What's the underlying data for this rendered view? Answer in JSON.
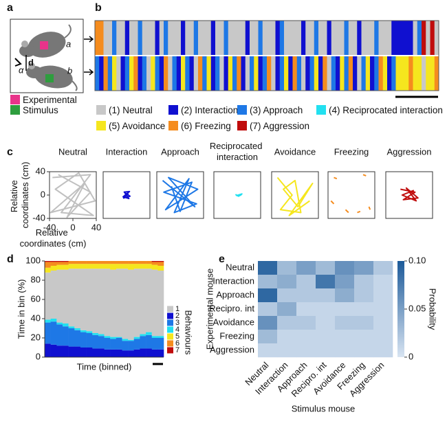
{
  "panel_letters": [
    "a",
    "b",
    "c",
    "d",
    "e"
  ],
  "panel_a": {
    "mouse_labels": [
      "a",
      "b"
    ],
    "distance": "d",
    "angle": "α",
    "legend": [
      {
        "name": "Experimental",
        "color": "#e8338a"
      },
      {
        "name": "Stimulus",
        "color": "#2e9e3e"
      }
    ]
  },
  "chart_data": [
    {
      "type": "ethogram",
      "colors": [
        "#c8c8c8",
        "#1010d0",
        "#1e78e6",
        "#22e0f0",
        "#f5e61e",
        "#f58c1e",
        "#c00c0c"
      ],
      "labels": [
        "(1) Neutral",
        "(2) Interaction",
        "(3) Approach",
        "(4) Reciprocated interaction",
        "(5) Avoidance",
        "(6) Freezing",
        "(7) Aggression"
      ],
      "rows": [
        [
          6,
          6,
          1,
          1,
          3,
          1,
          1,
          2,
          1,
          1,
          3,
          1,
          1,
          1,
          2,
          1,
          3,
          1,
          1,
          1,
          2,
          1,
          1,
          3,
          1,
          1,
          1,
          2,
          1,
          1,
          3,
          1,
          1,
          1,
          1,
          2,
          1,
          1,
          3,
          1,
          1,
          1,
          2,
          3,
          1,
          1,
          1,
          1,
          2,
          1,
          1,
          3,
          1,
          1,
          2,
          1,
          1,
          1,
          3,
          1,
          1,
          2,
          1,
          1,
          1,
          3,
          1,
          1,
          1,
          2,
          2,
          2,
          2,
          2,
          1,
          3,
          7,
          1,
          7,
          1
        ],
        [
          3,
          2,
          6,
          3,
          5,
          1,
          2,
          3,
          5,
          6,
          2,
          3,
          1,
          5,
          3,
          2,
          6,
          1,
          3,
          2,
          5,
          3,
          2,
          1,
          6,
          3,
          5,
          2,
          3,
          1,
          2,
          5,
          3,
          6,
          2,
          1,
          3,
          5,
          2,
          3,
          6,
          1,
          2,
          3,
          5,
          2,
          6,
          3,
          1,
          2,
          3,
          5,
          2,
          6,
          1,
          3,
          2,
          5,
          3,
          6,
          2,
          1,
          3,
          5,
          2,
          3,
          6,
          5,
          2,
          3,
          5,
          5,
          5,
          6,
          5,
          5,
          1,
          5,
          5,
          6
        ]
      ]
    },
    {
      "type": "line",
      "xlim": [
        -40,
        40
      ],
      "ylim": [
        -40,
        40
      ],
      "xticks": [
        -40,
        0,
        40
      ],
      "yticks": [
        -40,
        0,
        40
      ],
      "x_label": "Relative coordinates (cm)",
      "y_label": "Relative coordinates (cm)",
      "panels": [
        {
          "title": "Neutral",
          "color": "#c0c0c0",
          "x": [
            -35,
            30,
            -20,
            35,
            -30,
            10,
            38,
            -38,
            20,
            -10,
            30,
            -25
          ],
          "y": [
            30,
            35,
            -30,
            -35,
            10,
            38,
            -10,
            -30,
            20,
            -38,
            5,
            35
          ]
        },
        {
          "title": "Interaction",
          "color": "#1010d0",
          "x": [
            -5,
            5,
            -6,
            4,
            -3,
            6,
            -5,
            3
          ],
          "y": [
            5,
            6,
            -3,
            -6,
            4,
            -2,
            -5,
            3
          ]
        },
        {
          "title": "Approach",
          "color": "#1e78e6",
          "x": [
            -30,
            25,
            -20,
            30,
            -25,
            15,
            -10,
            28,
            -28,
            20,
            0,
            -15
          ],
          "y": [
            25,
            -20,
            30,
            10,
            -25,
            28,
            -30,
            -15,
            5,
            22,
            -28,
            15
          ]
        },
        {
          "title": "Reciprocated interaction",
          "color": "#22e0f0",
          "x": [
            -3,
            2,
            6,
            8,
            -2
          ],
          "y": [
            1,
            -2,
            0,
            2,
            -1
          ]
        },
        {
          "title": "Avoidance",
          "color": "#f5e61e",
          "x": [
            -30,
            -5,
            -25,
            10,
            0,
            -20,
            5,
            30,
            -10,
            25
          ],
          "y": [
            30,
            0,
            -25,
            -30,
            25,
            10,
            -20,
            20,
            -35,
            -10
          ]
        },
        {
          "title": "Freezing",
          "color": "#f58c1e",
          "x": [
            -30,
            -25,
            null,
            20,
            25,
            null,
            -10,
            -5,
            null,
            30,
            32,
            null,
            -35,
            -30,
            null,
            10,
            15
          ],
          "y": [
            30,
            28,
            null,
            35,
            33,
            null,
            -25,
            -30,
            null,
            -20,
            -25,
            null,
            -10,
            -15,
            null,
            -30,
            -28
          ]
        },
        {
          "title": "Aggression",
          "color": "#c00c0c",
          "x": [
            -15,
            10,
            -10,
            15,
            -5,
            12,
            -12,
            8
          ],
          "y": [
            10,
            5,
            -8,
            -5,
            12,
            -10,
            0,
            8
          ]
        }
      ]
    },
    {
      "type": "bar",
      "stacked": true,
      "y_label": "Time in bin (%)",
      "x_label": "Time (binned)",
      "legend_title": "Behaviours",
      "ylim": [
        0,
        100
      ],
      "yticks": [
        0,
        20,
        40,
        60,
        80,
        100
      ],
      "series": [
        {
          "name": "2",
          "color": "#1010d0",
          "values": [
            14,
            13,
            12,
            12,
            11,
            11,
            10,
            10,
            9,
            9,
            8,
            8,
            8,
            7,
            7,
            8,
            9,
            9,
            8,
            8
          ]
        },
        {
          "name": "3",
          "color": "#1e78e6",
          "values": [
            22,
            24,
            22,
            20,
            19,
            17,
            16,
            15,
            14,
            13,
            12,
            11,
            12,
            10,
            10,
            11,
            13,
            14,
            12,
            12
          ]
        },
        {
          "name": "4",
          "color": "#22e0f0",
          "values": [
            3,
            3,
            2,
            3,
            2,
            2,
            2,
            2,
            2,
            2,
            2,
            2,
            1,
            2,
            1,
            2,
            2,
            3,
            2,
            2
          ]
        },
        {
          "name": "1",
          "color": "#c8c8c8",
          "values": [
            49,
            50,
            55,
            56,
            60,
            62,
            64,
            65,
            67,
            68,
            70,
            70,
            71,
            73,
            73,
            71,
            68,
            66,
            69,
            68
          ]
        },
        {
          "name": "5",
          "color": "#f5e61e",
          "values": [
            5,
            5,
            5,
            5,
            5,
            5,
            5,
            5,
            5,
            5,
            5,
            6,
            5,
            5,
            6,
            5,
            5,
            5,
            5,
            5
          ]
        },
        {
          "name": "6",
          "color": "#f58c1e",
          "values": [
            6,
            4,
            3,
            3,
            3,
            3,
            3,
            3,
            3,
            3,
            3,
            3,
            3,
            3,
            3,
            3,
            3,
            3,
            3,
            4
          ]
        },
        {
          "name": "7",
          "color": "#c00c0c",
          "values": [
            1,
            1,
            1,
            1,
            0,
            0,
            0,
            0,
            0,
            0,
            0,
            0,
            0,
            0,
            0,
            0,
            0,
            0,
            1,
            1
          ]
        }
      ]
    },
    {
      "type": "heatmap",
      "rows": [
        "Neutral",
        "Interaction",
        "Approach",
        "Recipro. int",
        "Avoidance",
        "Freezing",
        "Aggression"
      ],
      "columns": [
        "Neutral",
        "Interaction",
        "Approach",
        "Recipro. int",
        "Avoidance",
        "Freezing",
        "Aggression"
      ],
      "x_label": "Stimulus mouse",
      "y_label": "Experimental mouse",
      "colorbar_label": "Probability",
      "clim": [
        0,
        0.1
      ],
      "colorbar_ticks": [
        0,
        0.05,
        {
          "value": 0.1,
          "label": "0.10"
        }
      ],
      "colormap": [
        "#d8e4f2",
        "#1c5a99"
      ],
      "values": [
        [
          0.09,
          0.03,
          0.05,
          0.03,
          0.06,
          0.05,
          0.02
        ],
        [
          0.03,
          0.04,
          0.02,
          0.08,
          0.05,
          0.02,
          0.01
        ],
        [
          0.09,
          0.02,
          0.02,
          0.02,
          0.04,
          0.02,
          0.01
        ],
        [
          0.02,
          0.04,
          0.01,
          0.01,
          0.01,
          0.01,
          0.01
        ],
        [
          0.06,
          0.02,
          0.02,
          0.01,
          0.02,
          0.02,
          0.01
        ],
        [
          0.03,
          0.01,
          0.01,
          0.01,
          0.01,
          0.01,
          0.01
        ],
        [
          0.01,
          0.01,
          0.01,
          0.01,
          0.01,
          0.01,
          0.01
        ]
      ]
    }
  ]
}
